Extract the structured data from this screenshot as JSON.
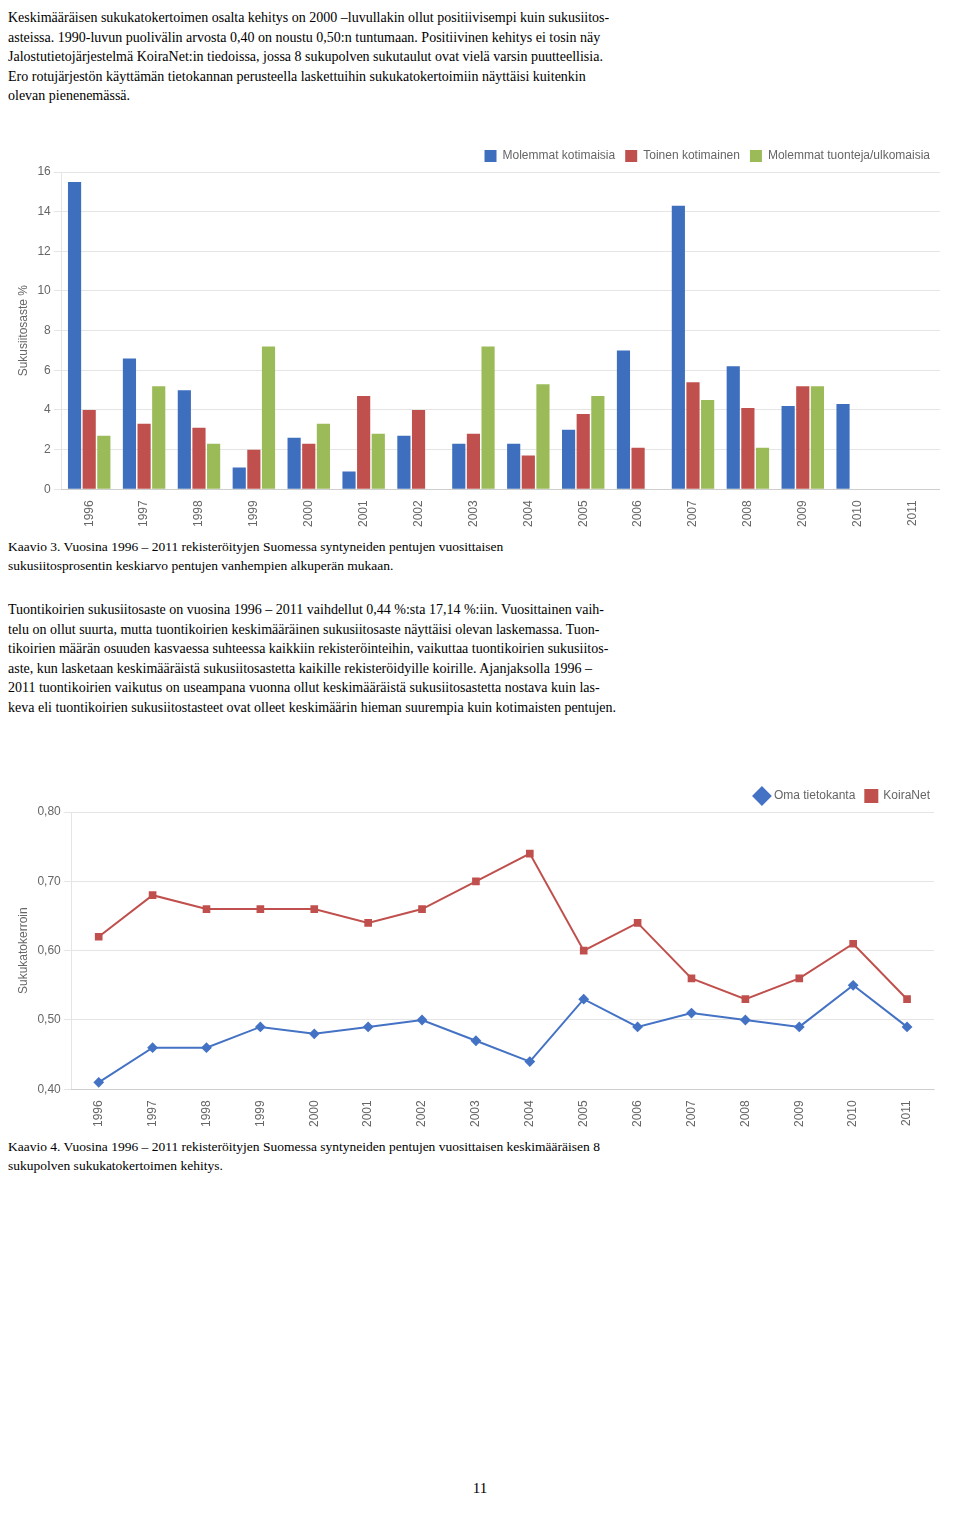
{
  "chart_data": [
    {
      "type": "bar",
      "categories": [
        "1996",
        "1997",
        "1998",
        "1999",
        "2000",
        "2001",
        "2002",
        "2003",
        "2004",
        "2005",
        "2006",
        "2007",
        "2008",
        "2009",
        "2010",
        "2011"
      ],
      "series": [
        {
          "name": "Molemmat kotimaisia",
          "color": "#3d6fbe",
          "values": [
            15.5,
            6.6,
            5.0,
            1.1,
            2.6,
            0.9,
            2.7,
            2.3,
            2.3,
            3.0,
            7.0,
            14.3,
            6.2,
            4.2,
            4.3,
            0.0
          ]
        },
        {
          "name": "Toinen kotimainen",
          "color": "#c0504d",
          "values": [
            4.0,
            3.3,
            3.1,
            2.0,
            2.3,
            4.7,
            4.0,
            2.8,
            1.7,
            3.8,
            2.1,
            5.4,
            4.1,
            5.2,
            0.0,
            0.0
          ]
        },
        {
          "name": "Molemmat tuonteja/ulkomaisia",
          "color": "#9bbb59",
          "values": [
            2.7,
            5.2,
            2.3,
            7.2,
            3.3,
            2.8,
            0.0,
            7.2,
            5.3,
            4.7,
            0.0,
            4.5,
            2.1,
            5.2,
            0.0,
            0.0
          ]
        }
      ],
      "ylabel": "Sukusiitosaste %",
      "ylim": [
        0,
        16
      ],
      "yticks": [
        0,
        2,
        4,
        6,
        8,
        10,
        12,
        14,
        16
      ],
      "grid": true,
      "legend": "upper right",
      "caption": "Kaavio 3. Vuosina 1996 – 2011 rekisteröityjen Suomessa syntyneiden pentujen vuosittaisen\nsukusiitosprosentin keskiarvo pentujen vanhempien alkuperän mukaan."
    },
    {
      "type": "line",
      "categories": [
        "1996",
        "1997",
        "1998",
        "1999",
        "2000",
        "2001",
        "2002",
        "2003",
        "2004",
        "2005",
        "2006",
        "2007",
        "2008",
        "2009",
        "2010",
        "2011"
      ],
      "series": [
        {
          "name": "Oma tietokanta",
          "color": "#4472c4",
          "marker": "diamond",
          "values": [
            0.41,
            0.46,
            0.46,
            0.49,
            0.48,
            0.49,
            0.5,
            0.47,
            0.44,
            0.53,
            0.49,
            0.51,
            0.5,
            0.49,
            0.55,
            0.49
          ]
        },
        {
          "name": "KoiraNet",
          "color": "#c0504d",
          "marker": "square",
          "values": [
            0.62,
            0.68,
            0.66,
            0.66,
            0.66,
            0.64,
            0.66,
            0.7,
            0.74,
            0.6,
            0.64,
            0.56,
            0.53,
            0.56,
            0.61,
            0.53
          ]
        }
      ],
      "ylabel": "Sukukatokerroin",
      "ylim": [
        0.4,
        0.8
      ],
      "yticks": [
        {
          "value": 0.4,
          "label": "0,40"
        },
        {
          "value": 0.5,
          "label": "0,50"
        },
        {
          "value": 0.6,
          "label": "0,60"
        },
        {
          "value": 0.7,
          "label": "0,70"
        },
        {
          "value": 0.8,
          "label": "0,80"
        }
      ],
      "grid": true,
      "legend": "upper right",
      "caption": "Kaavio 4. Vuosina 1996 – 2011 rekisteröityjen Suomessa syntyneiden pentujen vuosittaisen keskimääräisen 8\nsukupolven sukukatokertoimen kehitys."
    }
  ],
  "text_top": "Keskimääräisen sukukatokertoimen osalta kehitys on 2000 –luvullakin ollut positiivisempi kuin sukusiitos-\nasteissa. 1990-luvun puolivälin arvosta 0,40 on noustu 0,50:n tuntumaan. Positiivinen kehitys ei tosin näy\nJalostutietojärjestelmä KoiraNet:in tiedoissa, jossa 8 sukupolven sukutaulut ovat vielä varsin puutteellisia.\nEro rotujärjestön käyttämän tietokannan perusteella laskettuihin sukukatokertoimiin näyttäisi kuitenkin\nolevan pienenemässä.",
  "text_middle": "Tuontikoirien sukusiitosaste on vuosina 1996 – 2011 vaihdellut 0,44 %:sta 17,14 %:iin. Vuosittainen vaih-\ntelu on ollut suurta, mutta tuontikoirien keskimääräinen sukusiitosaste näyttäisi olevan laskemassa. Tuon-\ntikoirien määrän osuuden kasvaessa suhteessa kaikkiin rekisteröinteihin, vaikuttaa tuontikoirien sukusiitos-\naste, kun lasketaan keskimääräistä sukusiitosastetta kaikille rekisteröidyille koirille. Ajanjaksolla 1996 –\n2011 tuontikoirien vaikutus on useampana vuonna ollut keskimääräistä sukusiitosastetta nostava kuin las-\nkeva eli tuontikoirien sukusiitostasteet ovat olleet keskimäärin hieman suurempia kuin kotimaisten pentujen.",
  "page_number": "11"
}
